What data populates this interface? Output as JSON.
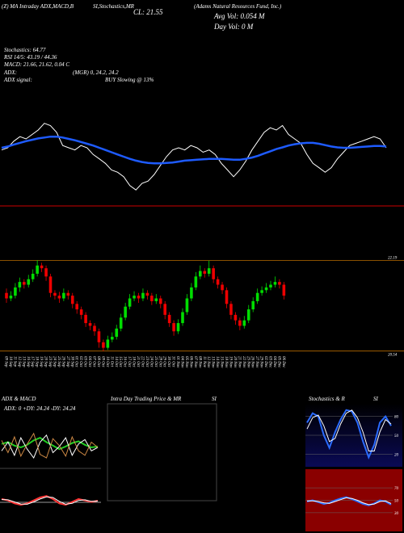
{
  "header": {
    "left": "(Z) MA Intraday ADX,MACD,B",
    "mid": "SI,Stochastics,MR",
    "close": "CL: 21.55",
    "title": "(Adams Natural Resources Fund, Inc.)",
    "avg_vol": "Avg Vol: 0.054 M",
    "day_vol": "Day Vol: 0 M"
  },
  "stats": {
    "stoch": "Stochastics: 64.77",
    "rsi": "RSI 14/5: 43.19 / 44.36",
    "macd": "MACD: 21.66, 21.62, 0.04 C",
    "adx_label": "ADX:",
    "adx_value": "(MGR) 0, 24.2, 24.2",
    "signal_label": "ADX signal:",
    "signal_value": "BUY Slowing @ 13%"
  },
  "top": {
    "ylim": [
      20.55,
      22.15
    ],
    "price_color": "#ffffff",
    "ma_color": "#1e5bff",
    "ma": [
      21.55,
      21.58,
      21.62,
      21.66,
      21.7,
      21.73,
      21.76,
      21.78,
      21.8,
      21.8,
      21.78,
      21.75,
      21.72,
      21.68,
      21.64,
      21.6,
      21.55,
      21.5,
      21.45,
      21.4,
      21.35,
      21.3,
      21.26,
      21.23,
      21.21,
      21.2,
      21.2,
      21.21,
      21.22,
      21.24,
      21.26,
      21.27,
      21.28,
      21.29,
      21.3,
      21.3,
      21.3,
      21.29,
      21.28,
      21.28,
      21.3,
      21.33,
      21.37,
      21.42,
      21.47,
      21.52,
      21.56,
      21.6,
      21.63,
      21.65,
      21.66,
      21.66,
      21.64,
      21.61,
      21.58,
      21.56,
      21.55,
      21.55,
      21.56,
      21.57,
      21.58,
      21.59,
      21.59,
      21.58
    ]
  },
  "price": {
    "ylim": [
      20.3,
      22.45
    ],
    "yticks": [
      22.19,
      20.54
    ],
    "up_color": "#00dd00",
    "down_color": "#ee0000",
    "dates": [
      "09 Sep",
      "10 Sep",
      "11 Sep",
      "12 Sep",
      "13 Sep",
      "16 Sep",
      "17 Sep",
      "18 Sep",
      "19 Sep",
      "20 Sep",
      "23 Sep",
      "24 Sep",
      "25 Sep",
      "26 Sep",
      "27 Sep",
      "30 Sep",
      "01 Oct",
      "02 Oct",
      "03 Oct",
      "04 Oct",
      "07 Oct",
      "08 Oct",
      "09 Oct",
      "10 Oct",
      "11 Oct",
      "14 Oct",
      "15 Oct",
      "16 Oct",
      "17 Oct",
      "18 Oct",
      "21 Oct",
      "22 Oct",
      "23 Oct",
      "24 Oct",
      "25 Oct",
      "28 Oct",
      "29 Oct",
      "30 Oct",
      "31 Oct",
      "01 Nov",
      "04 Nov",
      "05 Nov",
      "06 Nov",
      "07 Nov",
      "08 Nov",
      "11 Nov",
      "12 Nov",
      "13 Nov",
      "14 Nov",
      "15 Nov",
      "18 Nov",
      "19 Nov",
      "20 Nov",
      "21 Nov",
      "22 Nov",
      "25 Nov",
      "26 Nov",
      "27 Nov",
      "29 Nov",
      "02 Dec",
      "03 Dec",
      "04 Dec",
      "05 Dec",
      "06 Dec"
    ],
    "candles": [
      [
        21.6,
        21.68,
        21.42,
        21.5
      ],
      [
        21.5,
        21.63,
        21.45,
        21.55
      ],
      [
        21.55,
        21.78,
        21.5,
        21.7
      ],
      [
        21.7,
        21.88,
        21.62,
        21.8
      ],
      [
        21.8,
        21.85,
        21.68,
        21.75
      ],
      [
        21.75,
        21.93,
        21.7,
        21.85
      ],
      [
        21.85,
        22.03,
        21.8,
        21.95
      ],
      [
        21.95,
        22.2,
        21.9,
        22.1
      ],
      [
        22.1,
        22.15,
        21.98,
        22.05
      ],
      [
        22.05,
        22.1,
        21.82,
        21.9
      ],
      [
        21.9,
        21.95,
        21.52,
        21.6
      ],
      [
        21.6,
        21.65,
        21.48,
        21.55
      ],
      [
        21.55,
        21.62,
        21.42,
        21.5
      ],
      [
        21.5,
        21.68,
        21.45,
        21.6
      ],
      [
        21.6,
        21.65,
        21.48,
        21.55
      ],
      [
        21.55,
        21.6,
        21.32,
        21.4
      ],
      [
        21.4,
        21.45,
        21.22,
        21.3
      ],
      [
        21.3,
        21.35,
        21.12,
        21.2
      ],
      [
        21.2,
        21.25,
        20.98,
        21.05
      ],
      [
        21.05,
        21.1,
        20.92,
        21.0
      ],
      [
        21.0,
        21.05,
        20.82,
        20.9
      ],
      [
        20.9,
        20.95,
        20.6,
        20.7
      ],
      [
        20.7,
        20.75,
        20.54,
        20.6
      ],
      [
        20.6,
        20.82,
        20.56,
        20.75
      ],
      [
        20.75,
        20.88,
        20.7,
        20.8
      ],
      [
        20.8,
        21.02,
        20.75,
        20.95
      ],
      [
        20.95,
        21.22,
        20.9,
        21.15
      ],
      [
        21.15,
        21.42,
        21.1,
        21.35
      ],
      [
        21.35,
        21.58,
        21.3,
        21.5
      ],
      [
        21.5,
        21.63,
        21.45,
        21.55
      ],
      [
        21.55,
        21.6,
        21.42,
        21.5
      ],
      [
        21.5,
        21.68,
        21.45,
        21.6
      ],
      [
        21.6,
        21.65,
        21.48,
        21.55
      ],
      [
        21.55,
        21.6,
        21.38,
        21.45
      ],
      [
        21.45,
        21.58,
        21.4,
        21.5
      ],
      [
        21.5,
        21.55,
        21.32,
        21.4
      ],
      [
        21.4,
        21.45,
        21.12,
        21.2
      ],
      [
        21.2,
        21.25,
        20.98,
        21.05
      ],
      [
        21.05,
        21.1,
        20.82,
        20.9
      ],
      [
        20.9,
        21.12,
        20.85,
        21.05
      ],
      [
        21.05,
        21.32,
        21.0,
        21.25
      ],
      [
        21.25,
        21.58,
        21.2,
        21.5
      ],
      [
        21.5,
        21.78,
        21.45,
        21.7
      ],
      [
        21.7,
        21.98,
        21.65,
        21.9
      ],
      [
        21.9,
        22.1,
        21.85,
        22.0
      ],
      [
        22.0,
        22.05,
        21.88,
        21.95
      ],
      [
        21.95,
        22.19,
        21.9,
        22.05
      ],
      [
        22.05,
        22.1,
        21.78,
        21.85
      ],
      [
        21.85,
        21.9,
        21.68,
        21.75
      ],
      [
        21.75,
        21.8,
        21.58,
        21.65
      ],
      [
        21.65,
        21.7,
        21.32,
        21.4
      ],
      [
        21.4,
        21.45,
        21.12,
        21.2
      ],
      [
        21.2,
        21.25,
        21.02,
        21.1
      ],
      [
        21.1,
        21.15,
        20.92,
        21.0
      ],
      [
        21.0,
        21.18,
        20.95,
        21.1
      ],
      [
        21.1,
        21.38,
        21.05,
        21.3
      ],
      [
        21.3,
        21.52,
        21.25,
        21.45
      ],
      [
        21.45,
        21.68,
        21.4,
        21.6
      ],
      [
        21.6,
        21.72,
        21.55,
        21.65
      ],
      [
        21.65,
        21.78,
        21.6,
        21.7
      ],
      [
        21.7,
        21.82,
        21.65,
        21.75
      ],
      [
        21.75,
        21.9,
        21.7,
        21.8
      ],
      [
        21.8,
        21.85,
        21.68,
        21.75
      ],
      [
        21.75,
        21.8,
        21.48,
        21.55
      ]
    ]
  },
  "adx_panel": {
    "title": "ADX  & MACD",
    "readout": "ADX: 0  +DY: 24.24  -DY: 24.24",
    "ylim": [
      0,
      60
    ],
    "series": [
      {
        "color": "#22cc22",
        "values": [
          28,
          30,
          26,
          24,
          27,
          32,
          35,
          30,
          26,
          22,
          25,
          29,
          31,
          27,
          24,
          25
        ]
      },
      {
        "color": "#ffffff",
        "values": [
          20,
          30,
          15,
          35,
          22,
          12,
          30,
          38,
          18,
          25,
          35,
          15,
          28,
          33,
          20,
          24
        ]
      },
      {
        "color": "#cc8844",
        "values": [
          32,
          18,
          36,
          14,
          28,
          40,
          16,
          12,
          34,
          26,
          14,
          36,
          20,
          15,
          30,
          24
        ]
      }
    ]
  },
  "macd_panel": {
    "ylim": [
      -1,
      1
    ],
    "series": [
      {
        "color": "#ff3333",
        "values": [
          0.1,
          0.05,
          -0.05,
          -0.1,
          -0.05,
          0.05,
          0.15,
          0.2,
          0.1,
          -0.05,
          -0.1,
          0,
          0.1,
          0.05,
          0,
          0.04
        ]
      },
      {
        "color": "#ffffff",
        "values": [
          0.08,
          0.07,
          0,
          -0.07,
          -0.08,
          0,
          0.1,
          0.17,
          0.15,
          0.02,
          -0.08,
          -0.05,
          0.05,
          0.07,
          0.02,
          0.03
        ]
      }
    ]
  },
  "intraday": {
    "title": "Intra  Day Trading Price  & MR",
    "title2": "SI"
  },
  "stoch_panel": {
    "title": "Stochastics & R",
    "title2": "SI",
    "ylim": [
      0,
      100
    ],
    "yticks": [
      80,
      50,
      20
    ],
    "series": [
      {
        "color": "#2a6bff",
        "values": [
          70,
          85,
          80,
          50,
          30,
          55,
          75,
          90,
          88,
          70,
          40,
          15,
          35,
          70,
          80,
          65
        ]
      },
      {
        "color": "#ffffff",
        "values": [
          60,
          78,
          82,
          65,
          40,
          45,
          68,
          85,
          90,
          78,
          55,
          25,
          25,
          55,
          75,
          68
        ]
      }
    ]
  },
  "rsi_panel": {
    "ylim": [
      0,
      100
    ],
    "yticks": [
      70,
      50,
      30
    ],
    "series": [
      {
        "color": "#2a6bff",
        "values": [
          48,
          50,
          47,
          44,
          46,
          50,
          53,
          55,
          52,
          48,
          44,
          42,
          45,
          50,
          48,
          43
        ]
      },
      {
        "color": "#ffffff",
        "values": [
          49,
          49,
          48,
          46,
          45,
          48,
          51,
          54,
          53,
          50,
          46,
          43,
          44,
          48,
          49,
          45
        ]
      }
    ]
  }
}
